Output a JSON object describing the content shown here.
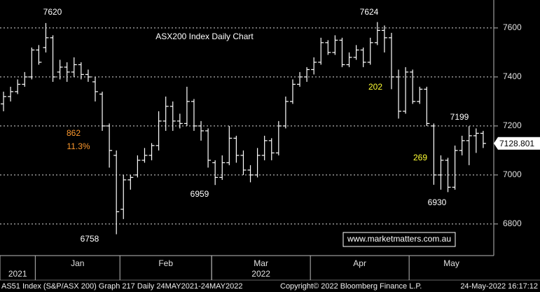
{
  "chart_data": {
    "type": "ohlc",
    "title": "ASX200 Index Daily Chart",
    "color": "#ffffff",
    "grid": true,
    "ylim": [
      6671,
      7714
    ],
    "yticks": [
      6800,
      7000,
      7200,
      7400,
      7600
    ],
    "xlim": [
      0,
      70
    ],
    "xticks": [
      {
        "value": 5,
        "label": "Jan"
      },
      {
        "value": 17,
        "label": "Feb"
      },
      {
        "value": 30,
        "label": "Mar"
      },
      {
        "value": 44,
        "label": "Apr"
      },
      {
        "value": 58,
        "label": "May"
      }
    ],
    "year_ticks": [
      {
        "value": 0,
        "label": "2021"
      },
      {
        "value": 30,
        "label": "2022"
      }
    ],
    "open": [
      7290,
      7320,
      7340,
      7370,
      7400,
      7510,
      7520,
      7560,
      7420,
      7440,
      7420,
      7450,
      7410,
      7380,
      7330,
      7200,
      7080,
      6860,
      6980,
      7000,
      7060,
      7080,
      7120,
      7220,
      7280,
      7220,
      7210,
      7300,
      7200,
      7180,
      7050,
      6990,
      7050,
      7150,
      7080,
      7020,
      7000,
      7080,
      7140,
      7090,
      7200,
      7300,
      7370,
      7400,
      7430,
      7460,
      7540,
      7500,
      7550,
      7450,
      7480,
      7510,
      7460,
      7540,
      7590,
      7560,
      7400,
      7260,
      7420,
      7300,
      7350,
      7200,
      7000,
      7060,
      6950,
      7100,
      7140,
      7160,
      7170
    ],
    "high": [
      7340,
      7360,
      7390,
      7420,
      7520,
      7530,
      7620,
      7570,
      7470,
      7460,
      7480,
      7460,
      7430,
      7400,
      7340,
      7210,
      7100,
      7000,
      7000,
      7080,
      7110,
      7130,
      7260,
      7320,
      7300,
      7250,
      7360,
      7310,
      7220,
      7190,
      7060,
      7080,
      7200,
      7160,
      7100,
      7040,
      7110,
      7160,
      7150,
      7220,
      7320,
      7390,
      7420,
      7440,
      7480,
      7560,
      7550,
      7570,
      7560,
      7500,
      7530,
      7520,
      7560,
      7624,
      7610,
      7580,
      7430,
      7440,
      7430,
      7360,
      7360,
      7210,
      7080,
      7070,
      7120,
      7160,
      7199,
      7190,
      7180
    ],
    "low": [
      7260,
      7300,
      7330,
      7360,
      7390,
      7450,
      7500,
      7380,
      7390,
      7380,
      7400,
      7390,
      7380,
      7300,
      7180,
      7030,
      6758,
      6820,
      6940,
      6990,
      7050,
      7060,
      7100,
      7180,
      7180,
      7190,
      7200,
      7180,
      7140,
      7030,
      6959,
      6980,
      7040,
      7050,
      7000,
      6970,
      6990,
      7060,
      7060,
      7080,
      7190,
      7290,
      7360,
      7380,
      7410,
      7450,
      7490,
      7490,
      7440,
      7440,
      7470,
      7440,
      7450,
      7530,
      7500,
      7350,
      7230,
      7250,
      7290,
      7290,
      7200,
      6960,
      6940,
      6930,
      6940,
      7080,
      7040,
      7090,
      7110
    ],
    "close": [
      7320,
      7340,
      7370,
      7400,
      7510,
      7460,
      7560,
      7400,
      7440,
      7420,
      7450,
      7410,
      7400,
      7340,
      7200,
      7100,
      6850,
      6980,
      6990,
      7060,
      7080,
      7120,
      7220,
      7280,
      7220,
      7210,
      7300,
      7200,
      7180,
      7060,
      6990,
      7050,
      7150,
      7080,
      7020,
      7000,
      7080,
      7140,
      7090,
      7200,
      7300,
      7370,
      7400,
      7430,
      7460,
      7540,
      7500,
      7550,
      7450,
      7480,
      7510,
      7460,
      7540,
      7590,
      7560,
      7400,
      7260,
      7420,
      7300,
      7350,
      7210,
      7000,
      7060,
      6950,
      7100,
      7140,
      7160,
      7170,
      7128.801
    ],
    "annotations": [
      {
        "text": "7620",
        "color": "#ffffff"
      },
      {
        "text": "7624",
        "color": "#ffffff"
      },
      {
        "text": "202",
        "color": "#ffff33"
      },
      {
        "text": "862",
        "color": "#ff9a2e"
      },
      {
        "text": "11.3%",
        "color": "#ff9a2e"
      },
      {
        "text": "6758",
        "color": "#ffffff"
      },
      {
        "text": "6959",
        "color": "#ffffff"
      },
      {
        "text": "7199",
        "color": "#ffffff"
      },
      {
        "text": "269",
        "color": "#ffff33"
      },
      {
        "text": "6930",
        "color": "#ffffff"
      }
    ],
    "title_color": "#5fd35f",
    "watermark": "www.marketmatters.com.au"
  },
  "footer": {
    "left": "AS51 Index (S&P/ASX 200) Graph 217 Daily 24MAY2021-24MAY2022",
    "center": "Copyright© 2022 Bloomberg Finance L.P.",
    "right": "24-May-2022 16:17:12"
  }
}
